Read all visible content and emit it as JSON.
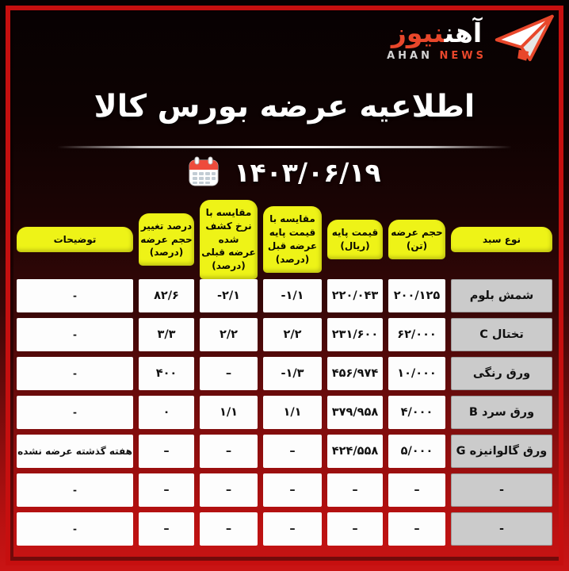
{
  "brand": {
    "fa_primary": "آهن",
    "fa_secondary": "نیوز",
    "en_primary": "AHAN",
    "en_secondary": "NEWS"
  },
  "header": {
    "title": "اطلاعیه عرضه بورس کالا",
    "date": "۱۴۰۳/۰۶/۱۹"
  },
  "colors": {
    "accent_orange": "#e8472b",
    "frame_red": "#c60f0f",
    "header_yellow": "#eef317",
    "row_header_gray": "#cbcbcb",
    "cell_white": "#fdfdfd",
    "background_bottom_red": "#ca1414"
  },
  "table": {
    "columns": [
      {
        "key": "type",
        "label": "نوع سبد"
      },
      {
        "key": "volume",
        "label": "حجم عرضه\n(تن)"
      },
      {
        "key": "base_price",
        "label": "قیمت پایه\n(ریال)"
      },
      {
        "key": "vs_prev_base_price",
        "label": "مقایسه با\nقیمت پایه\nعرضه قبل\n(درصد)"
      },
      {
        "key": "vs_prev_discovered_rate",
        "label": "مقایسه با\nنرخ کشف شده\nعرضه قبلی\n(درصد)"
      },
      {
        "key": "volume_change_pct",
        "label": "درصد تغییر\nحجم عرضه\n(درصد)"
      },
      {
        "key": "note",
        "label": "توضیحات"
      }
    ],
    "rows": [
      {
        "type": "شمش بلوم",
        "volume": "۲۰۰/۱۲۵",
        "base_price": "۲۲۰/۰۴۳",
        "vs_prev_base_price": "-۱/۱",
        "vs_prev_discovered_rate": "-۲/۱",
        "volume_change_pct": "۸۲/۶",
        "note": "-"
      },
      {
        "type": "تختال C",
        "volume": "۶۲/۰۰۰",
        "base_price": "۲۳۱/۶۰۰",
        "vs_prev_base_price": "۲/۲",
        "vs_prev_discovered_rate": "۲/۲",
        "volume_change_pct": "۳/۳",
        "note": "-"
      },
      {
        "type": "ورق رنگی",
        "volume": "۱۰/۰۰۰",
        "base_price": "۴۵۶/۹۷۴",
        "vs_prev_base_price": "-۱/۳",
        "vs_prev_discovered_rate": "–",
        "volume_change_pct": "۴۰۰",
        "note": "-"
      },
      {
        "type": "ورق سرد B",
        "volume": "۴/۰۰۰",
        "base_price": "۳۷۹/۹۵۸",
        "vs_prev_base_price": "۱/۱",
        "vs_prev_discovered_rate": "۱/۱",
        "volume_change_pct": "۰",
        "note": "-"
      },
      {
        "type": "ورق گالوانیزه G",
        "volume": "۵/۰۰۰",
        "base_price": "۴۲۴/۵۵۸",
        "vs_prev_base_price": "–",
        "vs_prev_discovered_rate": "–",
        "volume_change_pct": "–",
        "note": "هفته گذشته عرضه نشده بود"
      },
      {
        "type": "-",
        "volume": "–",
        "base_price": "–",
        "vs_prev_base_price": "–",
        "vs_prev_discovered_rate": "–",
        "volume_change_pct": "–",
        "note": "-"
      },
      {
        "type": "-",
        "volume": "–",
        "base_price": "–",
        "vs_prev_base_price": "–",
        "vs_prev_discovered_rate": "–",
        "volume_change_pct": "–",
        "note": "-"
      }
    ]
  }
}
